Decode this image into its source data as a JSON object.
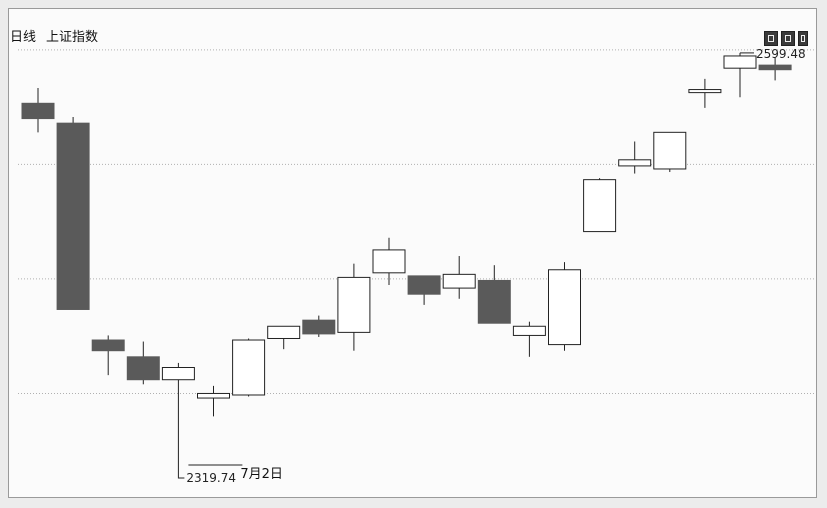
{
  "header": {
    "period": "日线",
    "index_name": "上证指数"
  },
  "toolbar": {
    "buttons": [
      "zoom-in-icon",
      "zoom-out-icon",
      "close-icon"
    ]
  },
  "colors": {
    "down": "#5a5a5a",
    "up_fill": "#ffffff",
    "outline": "#222222",
    "grid": "#b0b0b0"
  },
  "chart_data": {
    "type": "candlestick",
    "title": "",
    "ylim": [
      2300,
      2613
    ],
    "grid": "horizontal dotted",
    "candles": [
      {
        "open": 2565,
        "close": 2555,
        "high": 2575,
        "low": 2546
      },
      {
        "open": 2552,
        "close": 2430,
        "high": 2556,
        "low": 2430
      },
      {
        "open": 2410,
        "close": 2403,
        "high": 2413,
        "low": 2387
      },
      {
        "open": 2399,
        "close": 2384,
        "high": 2409,
        "low": 2381
      },
      {
        "open": 2384,
        "close": 2392,
        "high": 2395,
        "low": 2320
      },
      {
        "open": 2372,
        "close": 2375,
        "high": 2380,
        "low": 2360
      },
      {
        "open": 2374,
        "close": 2410,
        "high": 2411,
        "low": 2373
      },
      {
        "open": 2411,
        "close": 2419,
        "high": 2419,
        "low": 2404
      },
      {
        "open": 2423,
        "close": 2414,
        "high": 2426,
        "low": 2412
      },
      {
        "open": 2415,
        "close": 2451,
        "high": 2460,
        "low": 2403
      },
      {
        "open": 2454,
        "close": 2469,
        "high": 2477,
        "low": 2446
      },
      {
        "open": 2452,
        "close": 2440,
        "high": 2452,
        "low": 2433
      },
      {
        "open": 2444,
        "close": 2453,
        "high": 2465,
        "low": 2437
      },
      {
        "open": 2449,
        "close": 2421,
        "high": 2459,
        "low": 2421
      },
      {
        "open": 2413,
        "close": 2419,
        "high": 2422,
        "low": 2399
      },
      {
        "open": 2407,
        "close": 2456,
        "high": 2461,
        "low": 2403
      },
      {
        "open": 2481,
        "close": 2515,
        "high": 2516,
        "low": 2481
      },
      {
        "open": 2524,
        "close": 2528,
        "high": 2540,
        "low": 2519
      },
      {
        "open": 2522,
        "close": 2546,
        "high": 2546,
        "low": 2520
      },
      {
        "open": 2572,
        "close": 2574,
        "high": 2581,
        "low": 2562
      },
      {
        "open": 2588,
        "close": 2596,
        "high": 2598,
        "low": 2569
      },
      {
        "open": 2590,
        "close": 2587,
        "high": 2595,
        "low": 2580
      }
    ],
    "annotations": {
      "high_label": "2599.48",
      "high_index": 20,
      "low_label": "2319.74",
      "low_index": 4,
      "date_label": "7月2日"
    }
  }
}
